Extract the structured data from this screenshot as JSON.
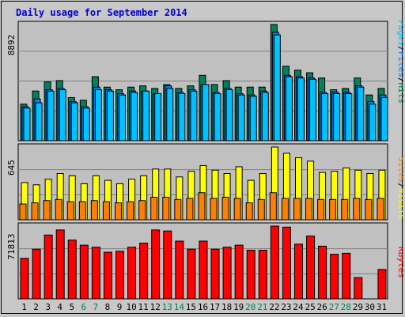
{
  "title": "Daily usage for September 2014",
  "colors": {
    "hits": "#00805c",
    "files": "#0080ff",
    "pages": "#00c0ff",
    "visits": "#ffff00",
    "sites": "#ff8000",
    "kbytes": "#ff0000",
    "weekend_label": "#00805c",
    "weekday_label": "#000000",
    "title": "#0000cc"
  },
  "chart_data": [
    {
      "type": "bar",
      "panel": "hits-files-pages",
      "ymax_label": "8892",
      "ymax": 8892,
      "categories": [
        "1",
        "2",
        "3",
        "4",
        "5",
        "6",
        "7",
        "8",
        "9",
        "10",
        "11",
        "12",
        "13",
        "14",
        "15",
        "16",
        "17",
        "18",
        "19",
        "20",
        "21",
        "22",
        "23",
        "24",
        "25",
        "26",
        "27",
        "28",
        "29",
        "30",
        "31"
      ],
      "weekend_days": [
        "6",
        "7",
        "13",
        "14",
        "20",
        "21",
        "27",
        "28"
      ],
      "legend": {
        "pages": "Pages",
        "sep1": "/",
        "files": "Files",
        "sep2": "/",
        "hits": "Hits"
      },
      "series": [
        {
          "name": "Hits",
          "values": [
            2800,
            3800,
            4500,
            4600,
            3300,
            3100,
            4900,
            4100,
            3900,
            4100,
            4200,
            4000,
            4300,
            4000,
            4200,
            5000,
            4300,
            4600,
            4100,
            4100,
            4100,
            8892,
            5700,
            5400,
            5200,
            4800,
            3900,
            4000,
            4800,
            3500,
            4000
          ]
        },
        {
          "name": "Files",
          "values": [
            2600,
            3200,
            3900,
            4000,
            3000,
            2600,
            4100,
            3900,
            3600,
            3800,
            3800,
            3600,
            4200,
            3700,
            3900,
            4300,
            3700,
            4000,
            3600,
            3500,
            3800,
            8300,
            5000,
            4900,
            4800,
            3700,
            3700,
            3700,
            4200,
            3000,
            3500
          ]
        },
        {
          "name": "Pages",
          "values": [
            2500,
            2900,
            3800,
            3900,
            2900,
            2500,
            3900,
            3800,
            3500,
            3700,
            3800,
            3600,
            4000,
            3600,
            3800,
            4300,
            3600,
            3900,
            3500,
            3400,
            3700,
            8100,
            4900,
            4800,
            4700,
            3600,
            3600,
            3600,
            4100,
            2800,
            3300
          ]
        }
      ]
    },
    {
      "type": "bar",
      "panel": "visits-sites",
      "ymax_label": "645",
      "ymax": 645,
      "categories": [
        "1",
        "2",
        "3",
        "4",
        "5",
        "6",
        "7",
        "8",
        "9",
        "10",
        "11",
        "12",
        "13",
        "14",
        "15",
        "16",
        "17",
        "18",
        "19",
        "20",
        "21",
        "22",
        "23",
        "24",
        "25",
        "26",
        "27",
        "28",
        "29",
        "30",
        "31"
      ],
      "legend": {
        "sites": "Sites",
        "sep1": "/",
        "visits": "Visits"
      },
      "series": [
        {
          "name": "Visits",
          "values": [
            330,
            310,
            360,
            410,
            390,
            320,
            390,
            350,
            320,
            360,
            390,
            450,
            450,
            380,
            430,
            480,
            440,
            410,
            470,
            350,
            410,
            645,
            590,
            550,
            520,
            420,
            430,
            460,
            440,
            410,
            440
          ]
        },
        {
          "name": "Sites",
          "values": [
            140,
            150,
            170,
            180,
            160,
            160,
            170,
            160,
            150,
            160,
            170,
            200,
            200,
            180,
            190,
            240,
            190,
            200,
            190,
            150,
            180,
            240,
            190,
            190,
            190,
            180,
            180,
            180,
            190,
            180,
            190
          ]
        }
      ]
    },
    {
      "type": "bar",
      "panel": "kbytes",
      "ymax_label": "71813",
      "ymax": 71813,
      "categories": [
        "1",
        "2",
        "3",
        "4",
        "5",
        "6",
        "7",
        "8",
        "9",
        "10",
        "11",
        "12",
        "13",
        "14",
        "15",
        "16",
        "17",
        "18",
        "19",
        "20",
        "21",
        "22",
        "23",
        "24",
        "25",
        "26",
        "27",
        "28",
        "29",
        "30",
        "31"
      ],
      "legend": {
        "kbytes": "KBytes"
      },
      "series": [
        {
          "name": "KBytes",
          "values": [
            40000,
            49000,
            63000,
            68000,
            58000,
            53000,
            51000,
            46000,
            47000,
            51000,
            55000,
            68000,
            67000,
            57000,
            49000,
            57000,
            49000,
            51000,
            53000,
            48000,
            48000,
            71813,
            70800,
            54000,
            62000,
            52000,
            44000,
            45000,
            21000,
            0,
            29000
          ]
        }
      ]
    }
  ]
}
